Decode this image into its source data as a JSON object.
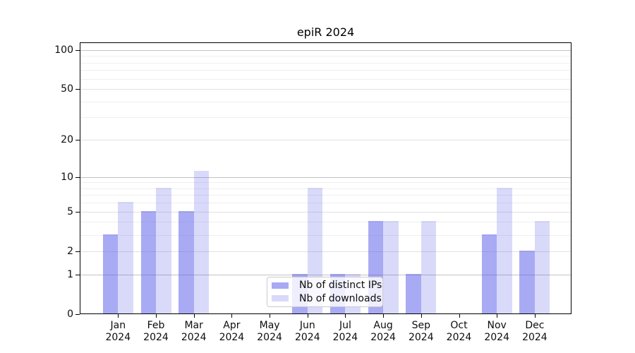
{
  "chart_data": {
    "type": "bar",
    "title": "epiR 2024",
    "categories": [
      "Jan",
      "Feb",
      "Mar",
      "Apr",
      "May",
      "Jun",
      "Jul",
      "Aug",
      "Sep",
      "Oct",
      "Nov",
      "Dec"
    ],
    "x_tick_year": "2024",
    "series": [
      {
        "name": "Nb of distinct IPs",
        "color": "rgba(85,88,232,0.51)",
        "values": [
          3,
          5,
          5,
          0,
          0,
          1,
          1,
          4,
          1,
          0,
          3,
          2
        ]
      },
      {
        "name": "Nb of downloads",
        "color": "rgba(85,88,232,0.225)",
        "values": [
          6,
          8,
          11,
          0,
          0,
          8,
          1,
          4,
          4,
          0,
          8,
          4
        ]
      }
    ],
    "y_axis": {
      "scale": "log10(1+x)",
      "ticks": [
        0,
        1,
        2,
        5,
        10,
        20,
        50,
        100
      ],
      "range_max": 114,
      "decade_gridlines": [
        1,
        10,
        100
      ],
      "mid_gridlines": [
        2,
        5,
        20,
        50
      ],
      "minor_gridlines": [
        3,
        4,
        6,
        7,
        8,
        9,
        30,
        40,
        60,
        70,
        80,
        90
      ]
    },
    "grid": true,
    "legend_position": "lower center"
  }
}
